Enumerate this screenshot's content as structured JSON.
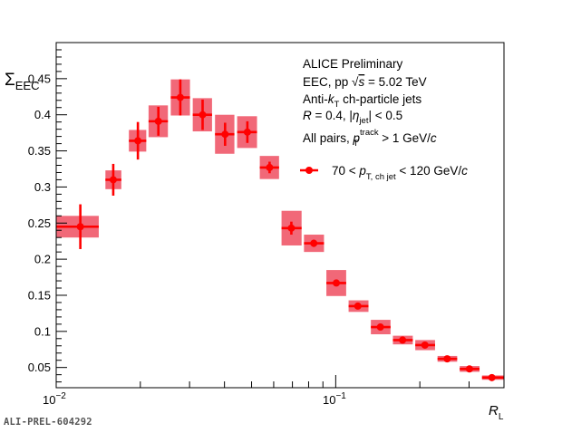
{
  "chart_data": {
    "type": "scatter",
    "xscale": "log",
    "xlim": [
      0.01,
      0.4
    ],
    "ylim": [
      0.022,
      0.5
    ],
    "ylabel_main": "Σ",
    "ylabel_sub": "EEC",
    "xlabel_main": "R",
    "xlabel_sub": "L",
    "x_tick_labels": [
      {
        "base": "10",
        "exp": "−2"
      },
      {
        "base": "10",
        "exp": "−1"
      }
    ],
    "y_ticks": [
      "0.05",
      "0.1",
      "0.15",
      "0.2",
      "0.25",
      "0.3",
      "0.35",
      "0.4",
      "0.45"
    ],
    "y_tick_values": [
      0.05,
      0.1,
      0.15,
      0.2,
      0.25,
      0.3,
      0.35,
      0.4,
      0.45
    ],
    "annotations": {
      "line1": "ALICE Preliminary",
      "line2_pre": "EEC, pp ",
      "line2_s": "s",
      "line2_post": " = 5.02 TeV",
      "line3_pre": "Anti-",
      "line3_k": "k",
      "line3_sub": "T",
      "line3_post": " ch-particle jets",
      "line4_R": "R",
      "line4_mid": " = 0.4, |",
      "line4_eta": "η",
      "line4_sub": "jet",
      "line4_post": "| < 0.5",
      "line5_pre": "All pairs, ",
      "line5_p": "p",
      "line5_sup": "track",
      "line5_sub": "T",
      "line5_post": " > 1 GeV/",
      "line5_c": "c"
    },
    "legend": {
      "pre": "70 < ",
      "p": "p",
      "sub": "T, ch jet",
      "post": " < 120 GeV/",
      "c": "c"
    },
    "colors": {
      "marker": "#ff0000",
      "syst_box": "#ef4e60"
    },
    "series": [
      {
        "points": [
          {
            "x": 0.0122,
            "y": 0.245,
            "xlo": 0.01,
            "xhi": 0.0142,
            "stat": 0.031,
            "syst": 0.015
          },
          {
            "x": 0.016,
            "y": 0.31,
            "xlo": 0.015,
            "xhi": 0.0171,
            "stat": 0.022,
            "syst": 0.013
          },
          {
            "x": 0.0196,
            "y": 0.364,
            "xlo": 0.0182,
            "xhi": 0.021,
            "stat": 0.026,
            "syst": 0.015
          },
          {
            "x": 0.0232,
            "y": 0.391,
            "xlo": 0.0214,
            "xhi": 0.0251,
            "stat": 0.02,
            "syst": 0.022
          },
          {
            "x": 0.0278,
            "y": 0.424,
            "xlo": 0.0257,
            "xhi": 0.0301,
            "stat": 0.025,
            "syst": 0.025
          },
          {
            "x": 0.0334,
            "y": 0.4,
            "xlo": 0.0308,
            "xhi": 0.0361,
            "stat": 0.021,
            "syst": 0.023
          },
          {
            "x": 0.0402,
            "y": 0.373,
            "xlo": 0.037,
            "xhi": 0.0434,
            "stat": 0.016,
            "syst": 0.027
          },
          {
            "x": 0.0483,
            "y": 0.376,
            "xlo": 0.0444,
            "xhi": 0.0523,
            "stat": 0.015,
            "syst": 0.022
          },
          {
            "x": 0.058,
            "y": 0.327,
            "xlo": 0.0535,
            "xhi": 0.0627,
            "stat": 0.008,
            "syst": 0.016
          },
          {
            "x": 0.0694,
            "y": 0.243,
            "xlo": 0.064,
            "xhi": 0.0755,
            "stat": 0.009,
            "syst": 0.024
          },
          {
            "x": 0.0835,
            "y": 0.222,
            "xlo": 0.077,
            "xhi": 0.0908,
            "stat": 0.005,
            "syst": 0.012
          },
          {
            "x": 0.1005,
            "y": 0.167,
            "xlo": 0.0926,
            "xhi": 0.109,
            "stat": 0.003,
            "syst": 0.018
          },
          {
            "x": 0.12,
            "y": 0.135,
            "xlo": 0.1112,
            "xhi": 0.131,
            "stat": 0.003,
            "syst": 0.008
          },
          {
            "x": 0.1445,
            "y": 0.106,
            "xlo": 0.1336,
            "xhi": 0.1571,
            "stat": 0.003,
            "syst": 0.01
          },
          {
            "x": 0.1735,
            "y": 0.088,
            "xlo": 0.1602,
            "xhi": 0.1887,
            "stat": 0.002,
            "syst": 0.006
          },
          {
            "x": 0.2085,
            "y": 0.081,
            "xlo": 0.1926,
            "xhi": 0.2267,
            "stat": 0.002,
            "syst": 0.007
          },
          {
            "x": 0.2505,
            "y": 0.062,
            "xlo": 0.2314,
            "xhi": 0.272,
            "stat": 0.002,
            "syst": 0.004
          },
          {
            "x": 0.301,
            "y": 0.048,
            "xlo": 0.2778,
            "xhi": 0.327,
            "stat": 0.001,
            "syst": 0.004
          },
          {
            "x": 0.362,
            "y": 0.036,
            "xlo": 0.3338,
            "xhi": 0.4,
            "stat": 0.001,
            "syst": 0.003
          }
        ]
      }
    ]
  },
  "footer_tag": "ALI-PREL-604292"
}
